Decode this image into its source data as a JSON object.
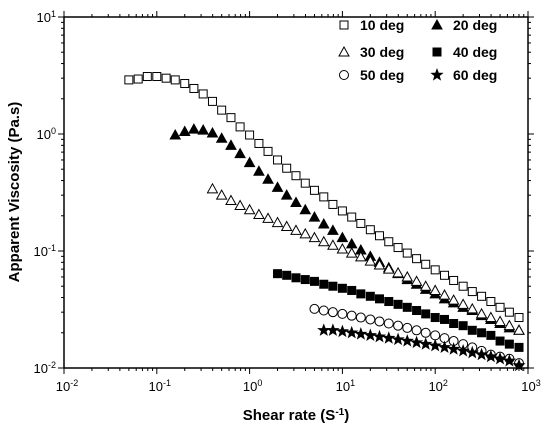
{
  "chart_data": {
    "type": "scatter",
    "xscale": "log",
    "yscale": "log",
    "xlim": [
      0.01,
      1000
    ],
    "ylim": [
      0.01,
      10
    ],
    "xlabel": "Shear rate (S-1)",
    "xlabel_main": "Shear rate (S",
    "xlabel_sup": "-1",
    "xlabel_close": ")",
    "ylabel": "Apparent Viscosity (Pa.s)",
    "x_ticks": [
      {
        "value": 0.01,
        "base": "10",
        "exp": "-2"
      },
      {
        "value": 0.1,
        "base": "10",
        "exp": "-1"
      },
      {
        "value": 1,
        "base": "10",
        "exp": "0"
      },
      {
        "value": 10,
        "base": "10",
        "exp": "1"
      },
      {
        "value": 100,
        "base": "10",
        "exp": "2"
      },
      {
        "value": 1000,
        "base": "10",
        "exp": "3"
      }
    ],
    "y_ticks": [
      {
        "value": 0.01,
        "base": "10",
        "exp": "-2"
      },
      {
        "value": 0.1,
        "base": "10",
        "exp": "-1"
      },
      {
        "value": 1,
        "base": "10",
        "exp": "0"
      },
      {
        "value": 10,
        "base": "10",
        "exp": "1"
      }
    ],
    "grid": false,
    "legend_position": "top-right",
    "series": [
      {
        "name": "10 deg",
        "marker": "square-open",
        "x": [
          0.05,
          0.063,
          0.079,
          0.1,
          0.126,
          0.158,
          0.2,
          0.251,
          0.316,
          0.398,
          0.5,
          0.63,
          0.79,
          1.0,
          1.26,
          1.58,
          2.0,
          2.51,
          3.16,
          3.98,
          5.0,
          6.3,
          7.9,
          10,
          12.6,
          15.8,
          20,
          25.1,
          31.6,
          39.8,
          50,
          63,
          79,
          100,
          126,
          158,
          200,
          251,
          316,
          398,
          500,
          630,
          800
        ],
        "y": [
          2.9,
          2.95,
          3.1,
          3.1,
          3.0,
          2.9,
          2.7,
          2.45,
          2.2,
          1.9,
          1.6,
          1.38,
          1.15,
          0.98,
          0.83,
          0.71,
          0.6,
          0.51,
          0.44,
          0.38,
          0.33,
          0.29,
          0.25,
          0.22,
          0.195,
          0.172,
          0.152,
          0.135,
          0.12,
          0.107,
          0.096,
          0.086,
          0.077,
          0.069,
          0.062,
          0.056,
          0.05,
          0.045,
          0.041,
          0.037,
          0.033,
          0.03,
          0.027
        ]
      },
      {
        "name": "20 deg",
        "marker": "triangle-filled",
        "x": [
          0.158,
          0.2,
          0.251,
          0.316,
          0.398,
          0.5,
          0.63,
          0.79,
          1.0,
          1.26,
          1.58,
          2.0,
          2.51,
          3.16,
          3.98,
          5.0,
          6.3,
          7.9,
          10,
          12.6,
          15.8,
          20,
          25.1,
          31.6,
          39.8,
          50,
          63,
          79,
          100,
          126,
          158,
          200,
          251,
          316,
          398,
          500,
          630,
          800
        ],
        "y": [
          0.98,
          1.05,
          1.1,
          1.08,
          1.02,
          0.92,
          0.8,
          0.68,
          0.57,
          0.48,
          0.41,
          0.35,
          0.3,
          0.26,
          0.225,
          0.195,
          0.17,
          0.15,
          0.13,
          0.115,
          0.102,
          0.09,
          0.08,
          0.072,
          0.064,
          0.057,
          0.052,
          0.047,
          0.043,
          0.039,
          0.036,
          0.033,
          0.031,
          0.028,
          0.026,
          0.024,
          0.022,
          0.021
        ]
      },
      {
        "name": "30 deg",
        "marker": "triangle-open",
        "x": [
          0.398,
          0.5,
          0.63,
          0.79,
          1.0,
          1.26,
          1.58,
          2.0,
          2.51,
          3.16,
          3.98,
          5.0,
          6.3,
          7.9,
          10,
          12.6,
          15.8,
          20,
          25.1,
          31.6,
          39.8,
          50,
          63,
          79,
          100,
          126,
          158,
          200,
          251,
          316,
          398,
          500,
          630,
          800
        ],
        "y": [
          0.34,
          0.3,
          0.27,
          0.245,
          0.225,
          0.205,
          0.19,
          0.175,
          0.162,
          0.15,
          0.14,
          0.13,
          0.12,
          0.112,
          0.104,
          0.096,
          0.089,
          0.082,
          0.076,
          0.07,
          0.065,
          0.06,
          0.055,
          0.05,
          0.046,
          0.042,
          0.038,
          0.035,
          0.032,
          0.029,
          0.027,
          0.025,
          0.023,
          0.021
        ]
      },
      {
        "name": "40 deg",
        "marker": "square-filled",
        "x": [
          2.0,
          2.51,
          3.16,
          3.98,
          5.0,
          6.3,
          7.9,
          10,
          12.6,
          15.8,
          20,
          25.1,
          31.6,
          39.8,
          50,
          63,
          79,
          100,
          126,
          158,
          200,
          251,
          316,
          398,
          500,
          630,
          800
        ],
        "y": [
          0.064,
          0.062,
          0.059,
          0.057,
          0.055,
          0.052,
          0.05,
          0.048,
          0.046,
          0.043,
          0.041,
          0.039,
          0.037,
          0.035,
          0.033,
          0.031,
          0.029,
          0.027,
          0.026,
          0.024,
          0.023,
          0.021,
          0.02,
          0.019,
          0.017,
          0.016,
          0.015
        ]
      },
      {
        "name": "50 deg",
        "marker": "circle-open",
        "x": [
          5.0,
          6.3,
          7.9,
          10,
          12.6,
          15.8,
          20,
          25.1,
          31.6,
          39.8,
          50,
          63,
          79,
          100,
          126,
          158,
          200,
          251,
          316,
          398,
          500,
          630,
          800
        ],
        "y": [
          0.032,
          0.031,
          0.03,
          0.029,
          0.028,
          0.027,
          0.026,
          0.025,
          0.024,
          0.023,
          0.022,
          0.021,
          0.02,
          0.019,
          0.018,
          0.017,
          0.016,
          0.015,
          0.014,
          0.013,
          0.0125,
          0.012,
          0.011
        ]
      },
      {
        "name": "60 deg",
        "marker": "star-filled",
        "x": [
          6.3,
          7.9,
          10,
          12.6,
          15.8,
          20,
          25.1,
          31.6,
          39.8,
          50,
          63,
          79,
          100,
          126,
          158,
          200,
          251,
          316,
          398,
          500,
          630,
          800
        ],
        "y": [
          0.021,
          0.021,
          0.0205,
          0.02,
          0.0195,
          0.019,
          0.0185,
          0.018,
          0.0175,
          0.017,
          0.0165,
          0.016,
          0.0155,
          0.015,
          0.0145,
          0.014,
          0.0135,
          0.013,
          0.0125,
          0.012,
          0.0115,
          0.0105
        ]
      }
    ]
  }
}
